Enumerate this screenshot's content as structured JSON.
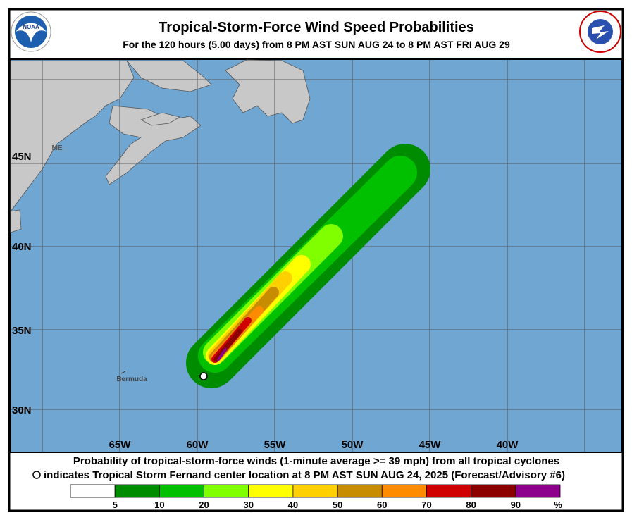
{
  "header": {
    "title": "Tropical-Storm-Force Wind Speed Probabilities",
    "subtitle": "For the 120 hours (5.00 days) from 8 PM AST SUN AUG 24 to 8 PM AST FRI AUG 29"
  },
  "map": {
    "lat_labels": [
      "45N",
      "40N",
      "35N",
      "30N"
    ],
    "lon_labels": [
      "65W",
      "60W",
      "55W",
      "50W",
      "45W",
      "40W"
    ],
    "places": [
      "ME",
      "Bermuda"
    ]
  },
  "footer": {
    "line1": "Probability of tropical-storm-force winds (1-minute average >= 39 mph) from all tropical cyclones",
    "line2": "indicates Tropical Storm Fernand center location at 8 PM AST SUN AUG 24, 2025 (Forecast/Advisory #6)"
  },
  "legend": {
    "ticks": [
      "5",
      "10",
      "20",
      "30",
      "40",
      "50",
      "60",
      "70",
      "80",
      "90"
    ],
    "unit": "%",
    "colors": [
      "#ffffff",
      "#008c00",
      "#00c000",
      "#80ff00",
      "#ffff00",
      "#ffd000",
      "#c88c00",
      "#ff8c00",
      "#d00000",
      "#8c0000",
      "#8c008c"
    ]
  }
}
